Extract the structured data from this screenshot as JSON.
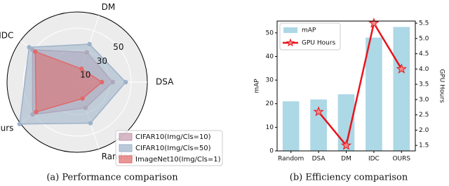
{
  "chart_data": [
    {
      "type": "radar",
      "caption": "(a) Performance comparison",
      "categories": [
        "DSA",
        "DM",
        "IDC",
        "Ours",
        "Random"
      ],
      "rlim": [
        0,
        65
      ],
      "rticks": [
        10,
        30,
        50
      ],
      "legend": "lower right",
      "series": [
        {
          "name": "CIFAR10(Img/Cls=10)",
          "color": "#c49aae",
          "values": [
            33,
            29,
            51,
            51,
            25
          ]
        },
        {
          "name": "CIFAR10(Img/Cls=50)",
          "color": "#9db2c9",
          "values": [
            45,
            37,
            55,
            66,
            40
          ]
        },
        {
          "name": "ImageNet10(Img/Cls=1)",
          "color": "#e06a6a",
          "values": [
            23,
            13,
            48,
            47,
            16
          ]
        }
      ]
    },
    {
      "type": "bar",
      "caption": "(b) Efficiency comparison",
      "categories": [
        "Random",
        "DSA",
        "DM",
        "IDC",
        "OURS"
      ],
      "ylabel": "mAP",
      "y2label": "GPU Hours",
      "ylim": [
        0,
        55
      ],
      "yticks": [
        0,
        10,
        20,
        30,
        40,
        50
      ],
      "y2lim": [
        1.32,
        5.57
      ],
      "y2ticks": [
        1.5,
        {
          "value": 2,
          "label": "2.0"
        },
        2.5,
        {
          "value": 3,
          "label": "3.0"
        },
        3.5,
        {
          "value": 4,
          "label": "4.0"
        },
        4.5,
        {
          "value": 5,
          "label": "5.0"
        },
        5.5
      ],
      "legend": "upper left",
      "series": [
        {
          "name": "mAP",
          "type": "bar",
          "color": "#add8e6",
          "values": [
            21,
            21.8,
            24,
            48,
            52.5
          ]
        },
        {
          "name": "GPU Hours",
          "type": "line",
          "axis": "y2",
          "color": "#e8141c",
          "marker_color": "#f08a8a",
          "values": [
            null,
            2.6,
            1.5,
            5.5,
            4.0
          ]
        }
      ]
    }
  ]
}
